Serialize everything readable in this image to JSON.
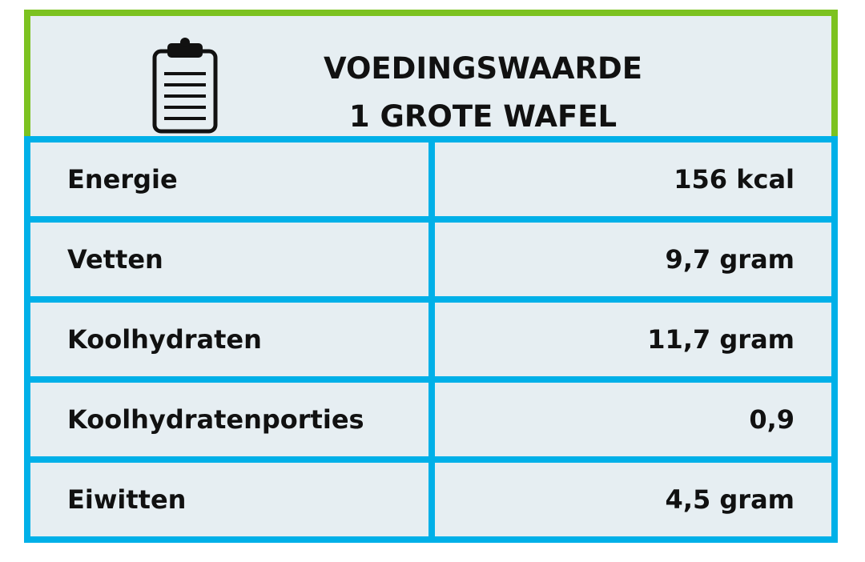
{
  "header": {
    "title_lines": [
      "VOEDINGSWAARDE",
      "1 GROTE WAFEL"
    ]
  },
  "table": {
    "rows": [
      [
        "Energie",
        "156 kcal"
      ],
      [
        "Vetten",
        "9,7 gram"
      ],
      [
        "Koolhydraten",
        "11,7 gram"
      ],
      [
        "Koolhydratenporties",
        "0,9"
      ],
      [
        "Eiwitten",
        "4,5 gram"
      ]
    ]
  }
}
